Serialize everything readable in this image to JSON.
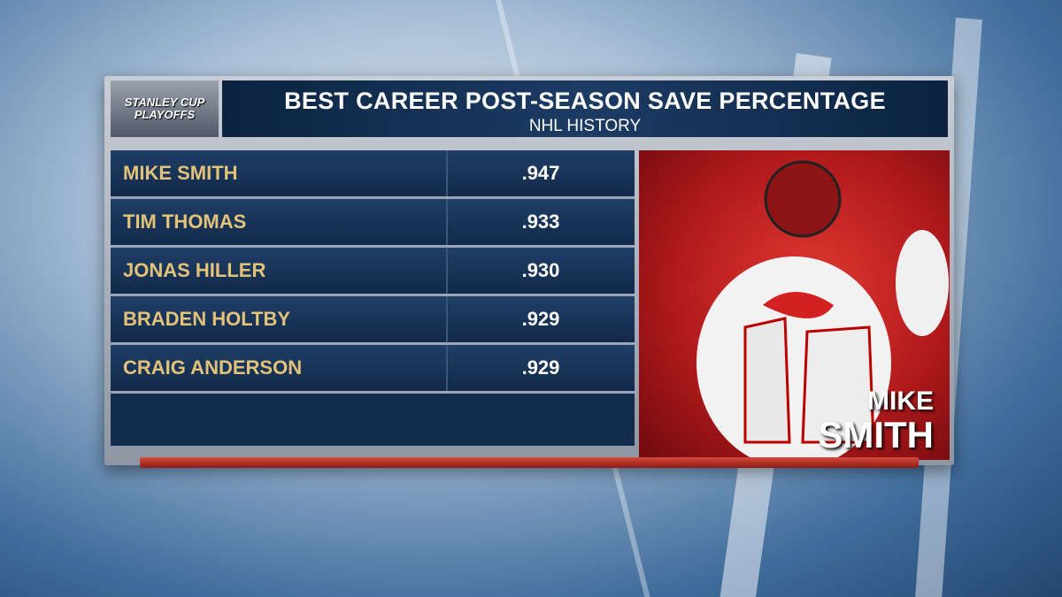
{
  "header": {
    "logo": [
      "STANLEY CUP",
      "PLAYOFFS"
    ],
    "title": "BEST CAREER POST-SEASON SAVE PERCENTAGE",
    "subtitle": "NHL HISTORY"
  },
  "table": {
    "rows": [
      [
        "MIKE SMITH",
        ".947"
      ],
      [
        "TIM THOMAS",
        ".933"
      ],
      [
        "JONAS HILLER",
        ".930"
      ],
      [
        "BRADEN HOLTBY",
        ".929"
      ],
      [
        "CRAIG ANDERSON",
        ".929"
      ]
    ]
  },
  "photo": {
    "caption": [
      "MIKE",
      "SMITH"
    ]
  }
}
